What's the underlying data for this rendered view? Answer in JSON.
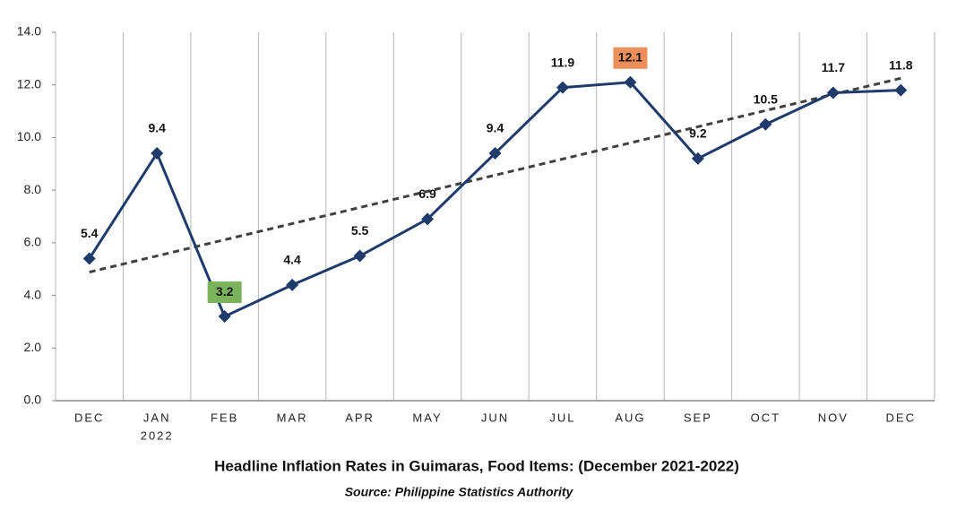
{
  "chart_data": {
    "type": "line",
    "title": "Headline Inflation Rates in Guimaras, Food Items: (December 2021-2022)",
    "subtitle": "Source: Philippine Statistics Authority",
    "categories": [
      "DEC",
      "JAN",
      "FEB",
      "MAR",
      "APR",
      "MAY",
      "JUN",
      "JUL",
      "AUG",
      "SEP",
      "OCT",
      "NOV",
      "DEC"
    ],
    "x_sublabels": [
      null,
      "2022",
      null,
      null,
      null,
      null,
      null,
      null,
      null,
      null,
      null,
      null,
      null
    ],
    "series": [
      {
        "name": "Food Items",
        "color": "#1f3b6b",
        "values": [
          5.4,
          9.4,
          3.2,
          4.4,
          5.5,
          6.9,
          9.4,
          11.9,
          12.1,
          9.2,
          10.5,
          11.7,
          11.8
        ]
      }
    ],
    "ylim": [
      0,
      14
    ],
    "yticks": [
      {
        "value": 0,
        "label": "0.0"
      },
      {
        "value": 2,
        "label": "2.0"
      },
      {
        "value": 4,
        "label": "4.0"
      },
      {
        "value": 6,
        "label": "6.0"
      },
      {
        "value": 8,
        "label": "8.0"
      },
      {
        "value": 10,
        "label": "10.0"
      },
      {
        "value": 12,
        "label": "12.0"
      },
      {
        "value": 14,
        "label": "14.0"
      }
    ],
    "trendline": true,
    "trendline_color": "#404040",
    "grid": true,
    "highlight_min_color": "#7bb35a",
    "highlight_max_color": "#ec8f5a"
  }
}
